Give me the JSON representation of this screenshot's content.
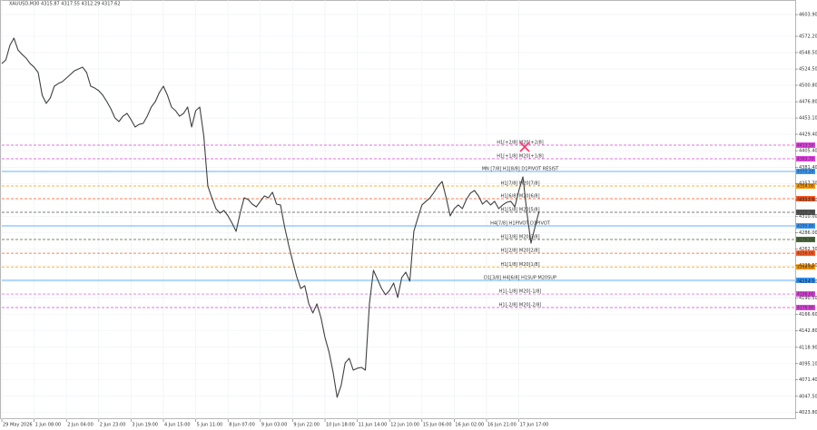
{
  "chart_data": {
    "type": "line",
    "title": "XAUUSD,M30  4315.87 4317.55 4312.29 4317.62",
    "color": "#404040",
    "grid": true,
    "ylim": [
      4014.2,
      4625.1
    ],
    "yticks": [
      {
        "value": 4603.9,
        "label": "4603.90"
      },
      {
        "value": 4572.2,
        "label": "4572.20"
      },
      {
        "value": 4548.5,
        "label": "4548.50"
      },
      {
        "value": 4524.5,
        "label": "4524.50"
      },
      {
        "value": 4500.8,
        "label": "4500.80"
      },
      {
        "value": 4476.8,
        "label": "4476.80"
      },
      {
        "value": 4453.1,
        "label": "4453.10"
      },
      {
        "value": 4429.4,
        "label": "4429.40"
      },
      {
        "value": 4405.4,
        "label": "4405.40"
      },
      {
        "value": 4381.4,
        "label": "4381.40"
      },
      {
        "value": 4357.7,
        "label": "4357.70"
      },
      {
        "value": 4333.8,
        "label": "4333.80"
      },
      {
        "value": 4310,
        "label": "4310.00"
      },
      {
        "value": 4286,
        "label": "4286.00"
      },
      {
        "value": 4262.3,
        "label": "4262.30"
      },
      {
        "value": 4238.5,
        "label": "4238.50"
      },
      {
        "value": 4214.2,
        "label": "4214.20"
      },
      {
        "value": 4190.5,
        "label": "4190.50"
      },
      {
        "value": 4166.6,
        "label": "4166.60"
      },
      {
        "value": 4142.8,
        "label": "4142.80"
      },
      {
        "value": 4118.9,
        "label": "4118.90"
      },
      {
        "value": 4095.1,
        "label": "4095.10"
      },
      {
        "value": 4071.4,
        "label": "4071.40"
      },
      {
        "value": 4047.5,
        "label": "4047.50"
      },
      {
        "value": 4023.8,
        "label": "4023.80"
      }
    ],
    "categories": [
      "29 May 2026",
      null,
      null,
      null,
      null,
      null,
      null,
      null,
      "1 Jun 08:00",
      null,
      null,
      null,
      null,
      null,
      null,
      null,
      "2 Jun 04:00",
      null,
      null,
      null,
      null,
      null,
      null,
      null,
      "2 Jun 23:00",
      null,
      null,
      null,
      null,
      null,
      null,
      null,
      "3 Jun 19:00",
      null,
      null,
      null,
      null,
      null,
      null,
      null,
      "4 Jun 15:00",
      null,
      null,
      null,
      null,
      null,
      null,
      null,
      "5 Jun 11:00",
      null,
      null,
      null,
      null,
      null,
      null,
      null,
      "8 Jun 07:00",
      null,
      null,
      null,
      null,
      null,
      null,
      null,
      "9 Jun 03:00",
      null,
      null,
      null,
      null,
      null,
      null,
      null,
      "9 Jun 22:00",
      null,
      null,
      null,
      null,
      null,
      null,
      null,
      "10 Jun 18:00",
      null,
      null,
      null,
      null,
      null,
      null,
      null,
      "11 Jun 14:00",
      null,
      null,
      null,
      null,
      null,
      null,
      null,
      "12 Jun 10:00",
      null,
      null,
      null,
      null,
      null,
      null,
      null,
      "15 Jun 06:00",
      null,
      null,
      null,
      null,
      null,
      null,
      null,
      "16 Jun 02:00",
      null,
      null,
      null,
      null,
      null,
      null,
      null,
      "16 Jun 21:00",
      null,
      null,
      null,
      null,
      null,
      null,
      null,
      "17 Jun 17:00",
      null,
      null,
      null,
      null,
      null
    ],
    "values": [
      4532.5,
      4537.8,
      4559.0,
      4569.6,
      4552.4,
      4545.8,
      4540.5,
      4532.5,
      4527.2,
      4519.3,
      4486.3,
      4474.4,
      4482.3,
      4499.5,
      4503.4,
      4506.1,
      4511.4,
      4516.7,
      4522.0,
      4524.6,
      4527.2,
      4519.3,
      4499.5,
      4496.8,
      4492.9,
      4486.3,
      4477.0,
      4466.4,
      4453.2,
      4447.9,
      4455.8,
      4459.8,
      4450.6,
      4440.0,
      4443.9,
      4445.3,
      4455.8,
      4469.1,
      4477.0,
      4490.2,
      4499.5,
      4486.3,
      4469.1,
      4463.8,
      4455.8,
      4459.8,
      4469.1,
      4440.0,
      4463.8,
      4469.1,
      4426.8,
      4354.0,
      4336.8,
      4321.0,
      4314.4,
      4318.3,
      4310.4,
      4299.8,
      4287.9,
      4314.4,
      4336.8,
      4334.2,
      4327.6,
      4323.6,
      4331.6,
      4339.5,
      4336.8,
      4344.8,
      4327.6,
      4326.3,
      4294.5,
      4268.1,
      4244.3,
      4221.8,
      4204.6,
      4208.6,
      4182.2,
      4168.9,
      4182.2,
      4162.3,
      4133.2,
      4112.1,
      4083.0,
      4046.0,
      4063.2,
      4096.2,
      4102.8,
      4085.6,
      4088.3,
      4089.6,
      4085.6,
      4182.2,
      4231.1,
      4217.9,
      4204.6,
      4195.4,
      4202.0,
      4212.6,
      4191.4,
      4220.5,
      4228.4,
      4215.2,
      4287.9,
      4307.8,
      4326.3,
      4331.6,
      4336.8,
      4344.8,
      4354.0,
      4360.6,
      4336.8,
      4310.4,
      4321.0,
      4326.3,
      4321.0,
      4334.2,
      4343.5,
      4347.4,
      4339.5,
      4327.6,
      4332.9,
      4326.3,
      4331.6,
      4321.0,
      4326.3,
      4330.2,
      4331.6,
      4323.6,
      4347.4,
      4367.3,
      4314.4,
      4270.7,
      4294.5,
      4317.0
    ],
    "levels": [
      {
        "name": "H1[+2/8] M20[+2/8]",
        "color": "#e040e0",
        "style": "dashed",
        "value": 4413.5,
        "value_label": "4413.50"
      },
      {
        "name": "H1[+1/8] M20[+1/8]",
        "color": "#e040e0",
        "style": "dashed",
        "value": 4393.7,
        "value_label": "4393.70"
      },
      {
        "name": "MN [7/8] H1[8/8] D1PIVOT RESIST",
        "color": "#3399ff",
        "style": "solid",
        "value": 4375.2,
        "value_label": "4375.20"
      },
      {
        "name": "H1[7/8] M20[7/8]",
        "color": "#ff9900",
        "style": "dashed",
        "value": 4354.0,
        "value_label": "4354.00"
      },
      {
        "name": "H1[6/8] M20[6/8]",
        "color": "#ff5a1f",
        "style": "dashed",
        "value": 4335.5,
        "value_label": "4335.50"
      },
      {
        "name": "H1[5/8] M20[5/8]",
        "color": "#555555",
        "style": "dashed",
        "value": 4315.7,
        "value_label": "4315.70"
      },
      {
        "name": "H4[7/8] H1PIVOT D1PIVOT",
        "color": "#3399ff",
        "style": "solid",
        "value": 4295.8,
        "value_label": "4295.80"
      },
      {
        "name": "H1[3/8] M20[3/8]",
        "color": "#4a6a3a",
        "style": "dashed",
        "value": 4276.0,
        "value_label": "4276.00"
      },
      {
        "name": "H1[2/8] M20[2/8]",
        "color": "#ff5a1f",
        "style": "dashed",
        "value": 4256.0,
        "value_label": "4256.00"
      },
      {
        "name": "H1[1/8] M20[1/8]",
        "color": "#ff9900",
        "style": "dashed",
        "value": 4236.0,
        "value_label": "4236.00"
      },
      {
        "name": "D1[3/8] H4[6/8] H1SUP M20SUP",
        "color": "#3399ff",
        "style": "solid",
        "value": 4216.5,
        "value_label": "4216.50"
      },
      {
        "name": "H1[-1/8] M20[-1/8]",
        "color": "#e040e0",
        "style": "dashed",
        "value": 4196.6,
        "value_label": "4196.60"
      },
      {
        "name": "H1[-2/8] M20[-2/8]",
        "color": "#e040e0",
        "style": "dashed",
        "value": 4176.8,
        "value_label": "4176.80"
      }
    ]
  }
}
